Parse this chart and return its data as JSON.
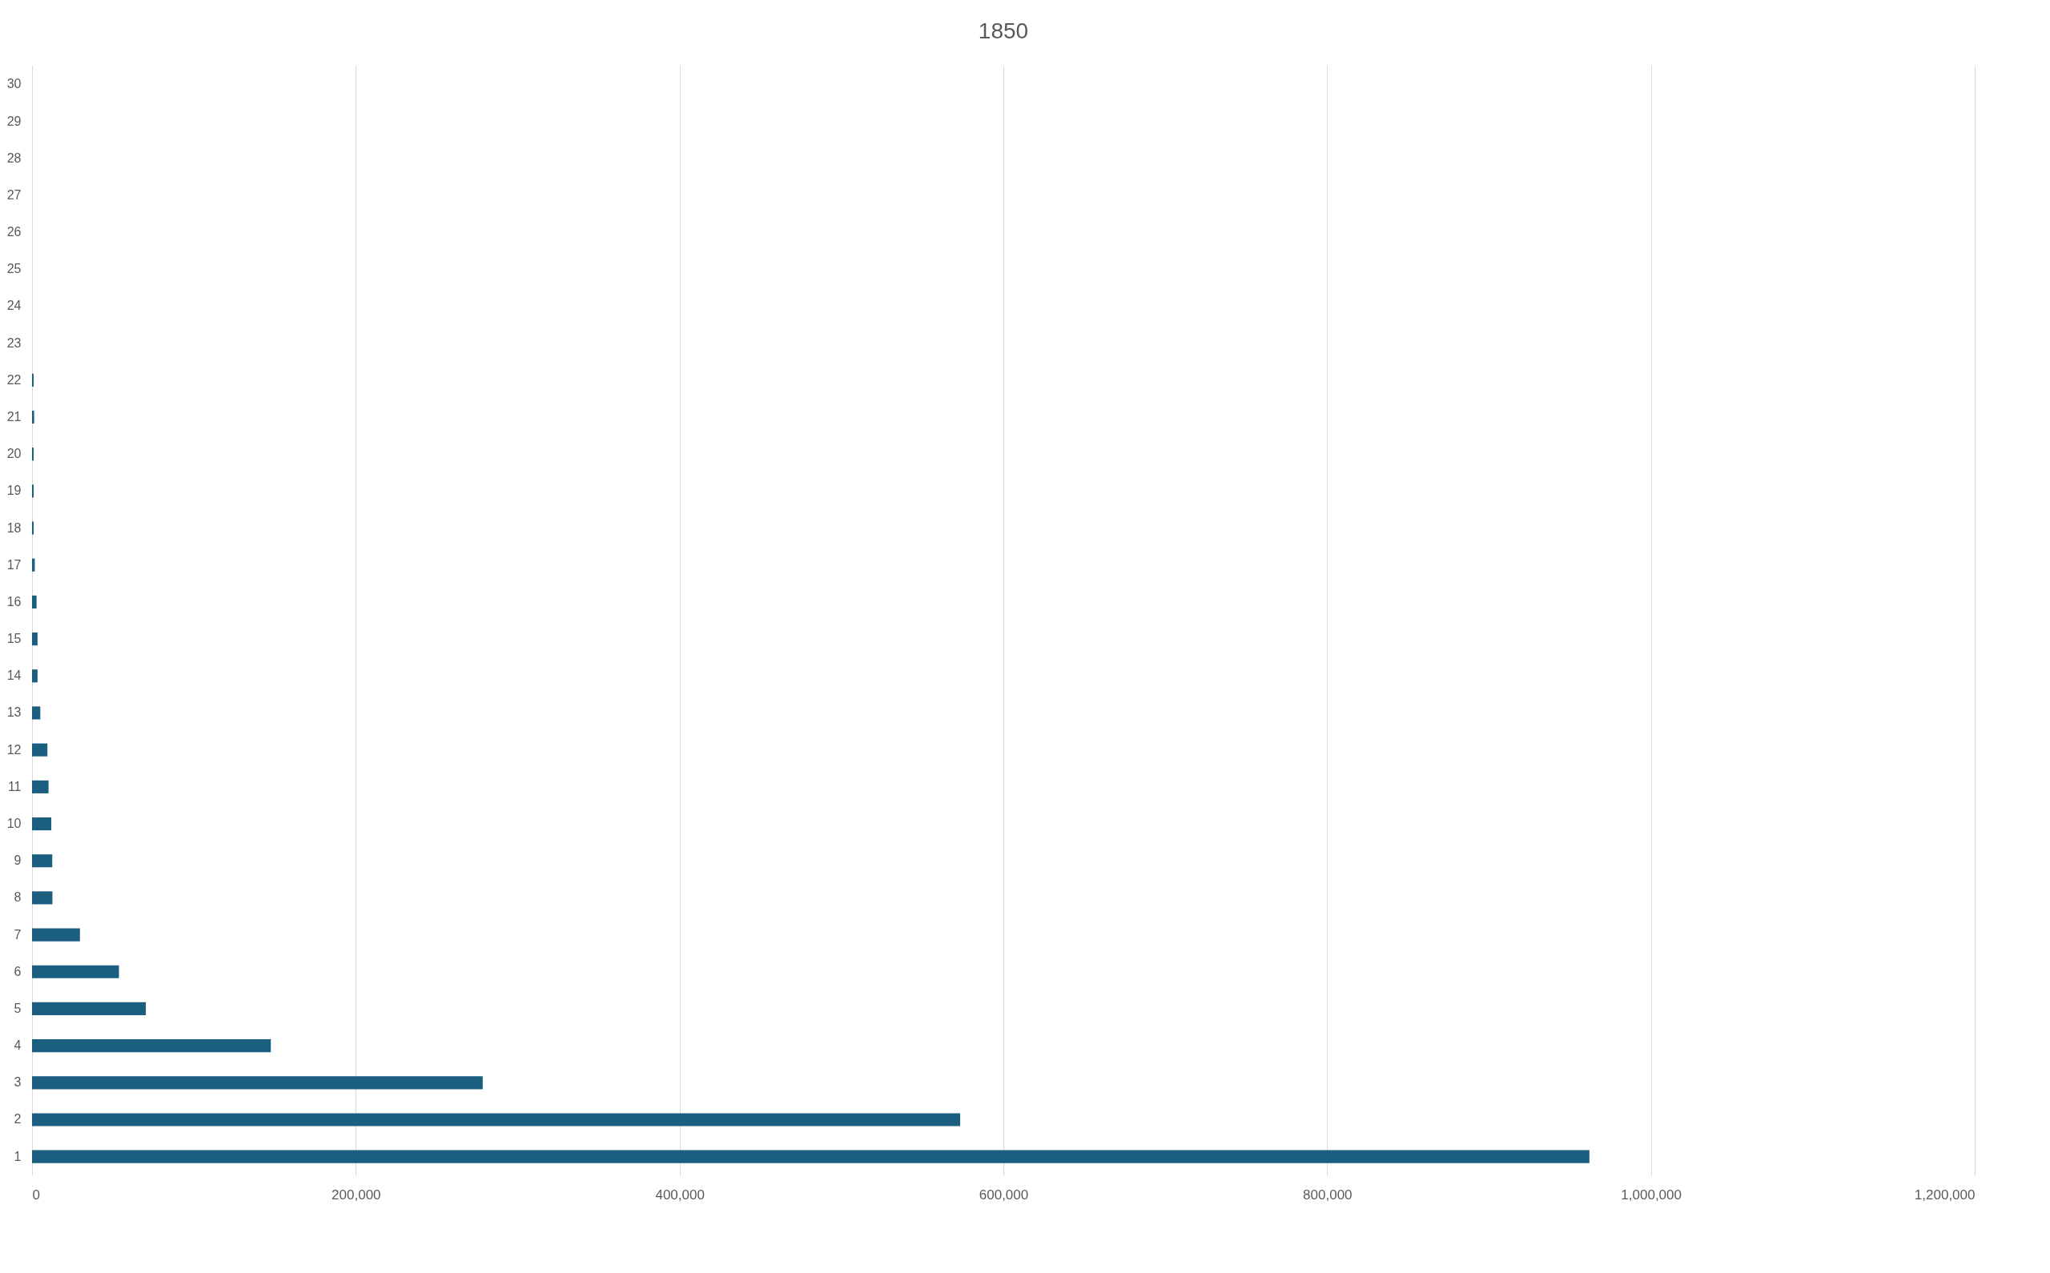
{
  "chart_data": {
    "type": "bar",
    "title": "1850",
    "orientation": "horizontal",
    "categories": [
      "30",
      "29",
      "28",
      "27",
      "26",
      "25",
      "24",
      "23",
      "22",
      "21",
      "20",
      "19",
      "18",
      "17",
      "16",
      "15",
      "14",
      "13",
      "12",
      "11",
      "10",
      "9",
      "8",
      "7",
      "6",
      "5",
      "4",
      "3",
      "2",
      "1"
    ],
    "values": [
      null,
      null,
      null,
      null,
      null,
      null,
      null,
      null,
      1000,
      1300,
      1000,
      1000,
      1000,
      1700,
      2800,
      3400,
      3400,
      5100,
      9500,
      10200,
      11900,
      12500,
      12600,
      29600,
      53700,
      70300,
      147500,
      278400,
      573300,
      962000
    ],
    "color": "#1a5f80",
    "xlim": [
      0,
      1200000
    ],
    "xticks": [
      0,
      {
        "value": 200000,
        "label": "200,000"
      },
      {
        "value": 400000,
        "label": "400,000"
      },
      {
        "value": 600000,
        "label": "600,000"
      },
      {
        "value": 800000,
        "label": "800,000"
      },
      {
        "value": 1000000,
        "label": "1,000,000"
      },
      {
        "value": 1200000,
        "label": "1,200,000"
      }
    ],
    "grid": "x"
  }
}
